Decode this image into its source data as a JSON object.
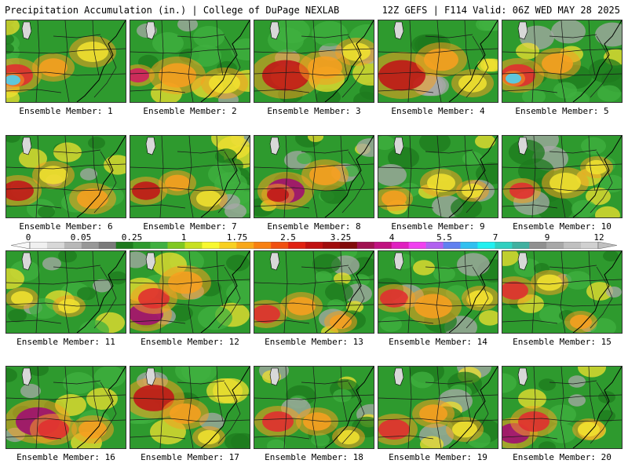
{
  "header": {
    "left_title": "Precipitation Accumulation (in.) | College of DuPage NEXLAB",
    "right_title": "12Z GEFS | F114 Valid: 06Z WED MAY 28 2025"
  },
  "member_label_prefix": "Ensemble Member:",
  "members": [
    {
      "label": "Ensemble Member: 1",
      "hotspots": [
        [
          12,
          70,
          22,
          "#e03030"
        ],
        [
          8,
          76,
          10,
          "#50d0f0"
        ],
        [
          60,
          60,
          18,
          "#f5a020"
        ],
        [
          110,
          40,
          20,
          "#f0e030"
        ]
      ]
    },
    {
      "label": "Ensemble Member: 2",
      "hotspots": [
        [
          10,
          70,
          14,
          "#d02060"
        ],
        [
          60,
          70,
          24,
          "#f5a020"
        ],
        [
          120,
          80,
          20,
          "#f0e030"
        ]
      ]
    },
    {
      "label": "Ensemble Member: 3",
      "hotspots": [
        [
          40,
          70,
          30,
          "#c01818"
        ],
        [
          90,
          60,
          22,
          "#f5a020"
        ],
        [
          130,
          40,
          18,
          "#f0e030"
        ]
      ]
    },
    {
      "label": "Ensemble Member: 4",
      "hotspots": [
        [
          30,
          70,
          30,
          "#c01818"
        ],
        [
          80,
          50,
          22,
          "#f5a020"
        ],
        [
          120,
          80,
          18,
          "#f0e030"
        ]
      ]
    },
    {
      "label": "Ensemble Member: 5",
      "hotspots": [
        [
          20,
          70,
          22,
          "#e03030"
        ],
        [
          14,
          74,
          10,
          "#50d0f0"
        ],
        [
          70,
          55,
          20,
          "#f5a020"
        ]
      ]
    },
    {
      "label": "Ensemble Member: 6",
      "hotspots": [
        [
          15,
          70,
          20,
          "#c01818"
        ],
        [
          60,
          50,
          18,
          "#f0e030"
        ],
        [
          110,
          80,
          20,
          "#f5a020"
        ]
      ]
    },
    {
      "label": "Ensemble Member: 7",
      "hotspots": [
        [
          20,
          70,
          18,
          "#c01818"
        ],
        [
          60,
          60,
          16,
          "#f5a020"
        ],
        [
          100,
          80,
          16,
          "#f0e030"
        ]
      ]
    },
    {
      "label": "Ensemble Member: 8",
      "hotspots": [
        [
          40,
          70,
          24,
          "#a01070"
        ],
        [
          30,
          75,
          14,
          "#c01818"
        ],
        [
          90,
          50,
          20,
          "#f5a020"
        ]
      ]
    },
    {
      "label": "Ensemble Member: 9",
      "hotspots": [
        [
          20,
          80,
          16,
          "#f5a020"
        ],
        [
          80,
          60,
          18,
          "#f0e030"
        ],
        [
          120,
          70,
          14,
          "#f0e030"
        ]
      ]
    },
    {
      "label": "Ensemble Member: 10",
      "hotspots": [
        [
          25,
          70,
          16,
          "#e03030"
        ],
        [
          80,
          60,
          20,
          "#f0e030"
        ],
        [
          120,
          40,
          14,
          "#f0e030"
        ]
      ]
    },
    {
      "label": "Ensemble Member: 11",
      "hotspots": [
        [
          20,
          60,
          14,
          "#f0e030"
        ],
        [
          80,
          70,
          14,
          "#f0e030"
        ]
      ]
    },
    {
      "label": "Ensemble Member: 12",
      "hotspots": [
        [
          20,
          80,
          22,
          "#a01070"
        ],
        [
          30,
          60,
          20,
          "#e03030"
        ],
        [
          70,
          40,
          22,
          "#f5a020"
        ]
      ]
    },
    {
      "label": "Ensemble Member: 13",
      "hotspots": [
        [
          15,
          80,
          18,
          "#e03030"
        ],
        [
          60,
          70,
          18,
          "#f5a020"
        ],
        [
          110,
          90,
          14,
          "#f5a020"
        ]
      ]
    },
    {
      "label": "Ensemble Member: 14",
      "hotspots": [
        [
          20,
          60,
          18,
          "#e03030"
        ],
        [
          70,
          70,
          24,
          "#f5a020"
        ],
        [
          130,
          60,
          16,
          "#f0e030"
        ]
      ]
    },
    {
      "label": "Ensemble Member: 15",
      "hotspots": [
        [
          15,
          50,
          18,
          "#e03030"
        ],
        [
          60,
          40,
          16,
          "#f0e030"
        ],
        [
          100,
          90,
          14,
          "#f5a020"
        ]
      ]
    },
    {
      "label": "Ensemble Member: 16",
      "hotspots": [
        [
          40,
          70,
          28,
          "#a01070"
        ],
        [
          60,
          80,
          20,
          "#e03030"
        ],
        [
          110,
          80,
          18,
          "#f5a020"
        ]
      ]
    },
    {
      "label": "Ensemble Member: 17",
      "hotspots": [
        [
          30,
          40,
          26,
          "#c01818"
        ],
        [
          70,
          60,
          20,
          "#f5a020"
        ],
        [
          100,
          90,
          14,
          "#f0e030"
        ]
      ]
    },
    {
      "label": "Ensemble Member: 18",
      "hotspots": [
        [
          30,
          70,
          20,
          "#e03030"
        ],
        [
          80,
          70,
          18,
          "#f5a020"
        ],
        [
          120,
          90,
          14,
          "#f0e030"
        ]
      ]
    },
    {
      "label": "Ensemble Member: 19",
      "hotspots": [
        [
          20,
          80,
          20,
          "#e03030"
        ],
        [
          70,
          60,
          18,
          "#f5a020"
        ],
        [
          110,
          80,
          16,
          "#f0e030"
        ]
      ]
    },
    {
      "label": "Ensemble Member: 20",
      "hotspots": [
        [
          15,
          85,
          20,
          "#a01070"
        ],
        [
          40,
          70,
          20,
          "#e03030"
        ],
        [
          110,
          80,
          14,
          "#f0e030"
        ]
      ]
    }
  ],
  "colorbar": {
    "labels": [
      "0",
      "0.05",
      "0.25",
      "1",
      "1.75",
      "2.5",
      "3.25",
      "4",
      "5.5",
      "7",
      "9",
      "12"
    ],
    "colors": [
      "#f0f0f0",
      "#d8d8d8",
      "#b8b8b8",
      "#989898",
      "#7a7a7a",
      "#1e7a1e",
      "#2e9a2e",
      "#40b040",
      "#80c820",
      "#c8e020",
      "#f8f830",
      "#f8d020",
      "#f8a818",
      "#f88010",
      "#f05010",
      "#e02010",
      "#c01010",
      "#a00c0c",
      "#800a0a",
      "#a01050",
      "#c01080",
      "#e020c0",
      "#f040f0",
      "#b060f0",
      "#6080f0",
      "#30c0f0",
      "#20f0f0",
      "#30d0c0",
      "#40b0a0",
      "#909090",
      "#a8a8a8",
      "#c0c0c0",
      "#d0d0d0"
    ]
  },
  "map_colors": {
    "green_dark": "#1e7a1e",
    "green_mid": "#2e9a2e",
    "green_light": "#40b040",
    "yellow": "#f0e030",
    "gray": "#a8a8a8",
    "lake": "#d8d8d8"
  }
}
